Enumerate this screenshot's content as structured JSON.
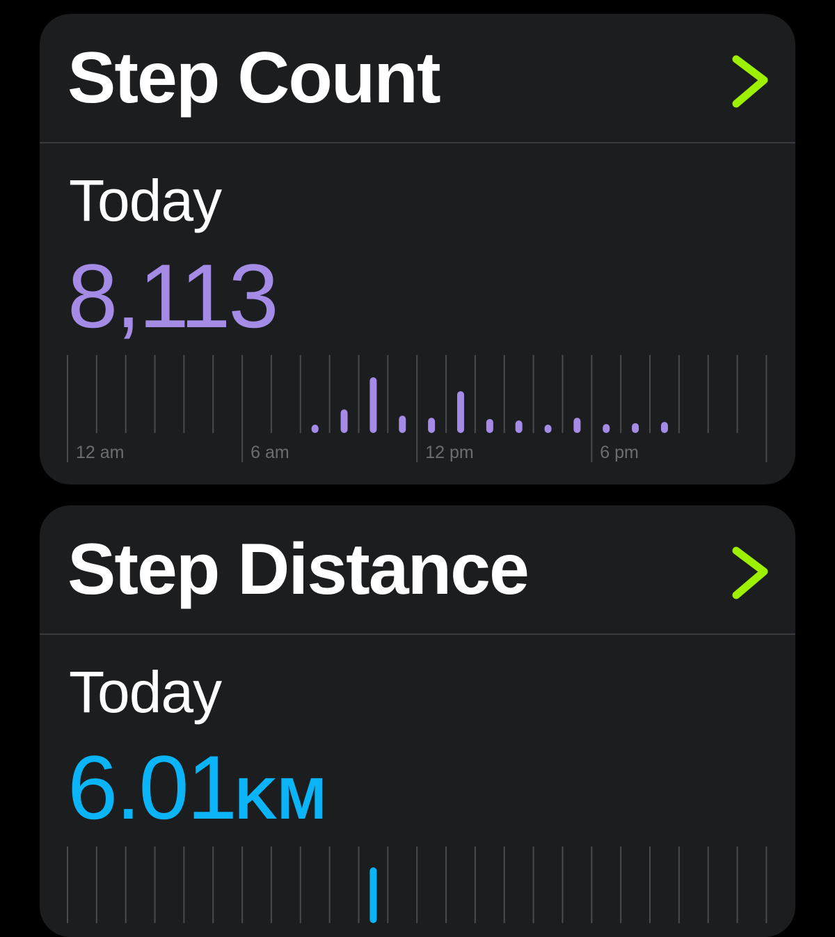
{
  "colors": {
    "accent_chevron": "#9cf000",
    "steps": "#a48ce6",
    "distance": "#0ab4f6",
    "card": "#1c1d1f",
    "grid": "#4a4b4e",
    "axis_label": "#6c6d70"
  },
  "cards": [
    {
      "title": "Step Count",
      "chevron_icon": "chevron-right-icon",
      "period": "Today",
      "value": "8,113",
      "unit": ""
    },
    {
      "title": "Step Distance",
      "chevron_icon": "chevron-right-icon",
      "period": "Today",
      "value": "6.01",
      "unit": "KM"
    }
  ],
  "chart_data": [
    {
      "type": "bar",
      "xlabel": "",
      "ylabel": "",
      "x_ticks": [
        "12 am",
        "6 am",
        "12 pm",
        "6 pm"
      ],
      "hours": [
        8,
        9,
        10,
        11,
        12,
        13,
        14,
        15,
        16,
        17,
        18,
        19,
        20
      ],
      "values": [
        280,
        790,
        1865,
        580,
        510,
        1400,
        470,
        420,
        280,
        510,
        300,
        330,
        370
      ],
      "grid": true
    },
    {
      "type": "bar",
      "xlabel": "",
      "ylabel": "",
      "x_ticks": [],
      "hours": [
        10
      ],
      "values": [
        1
      ],
      "grid": true
    }
  ]
}
